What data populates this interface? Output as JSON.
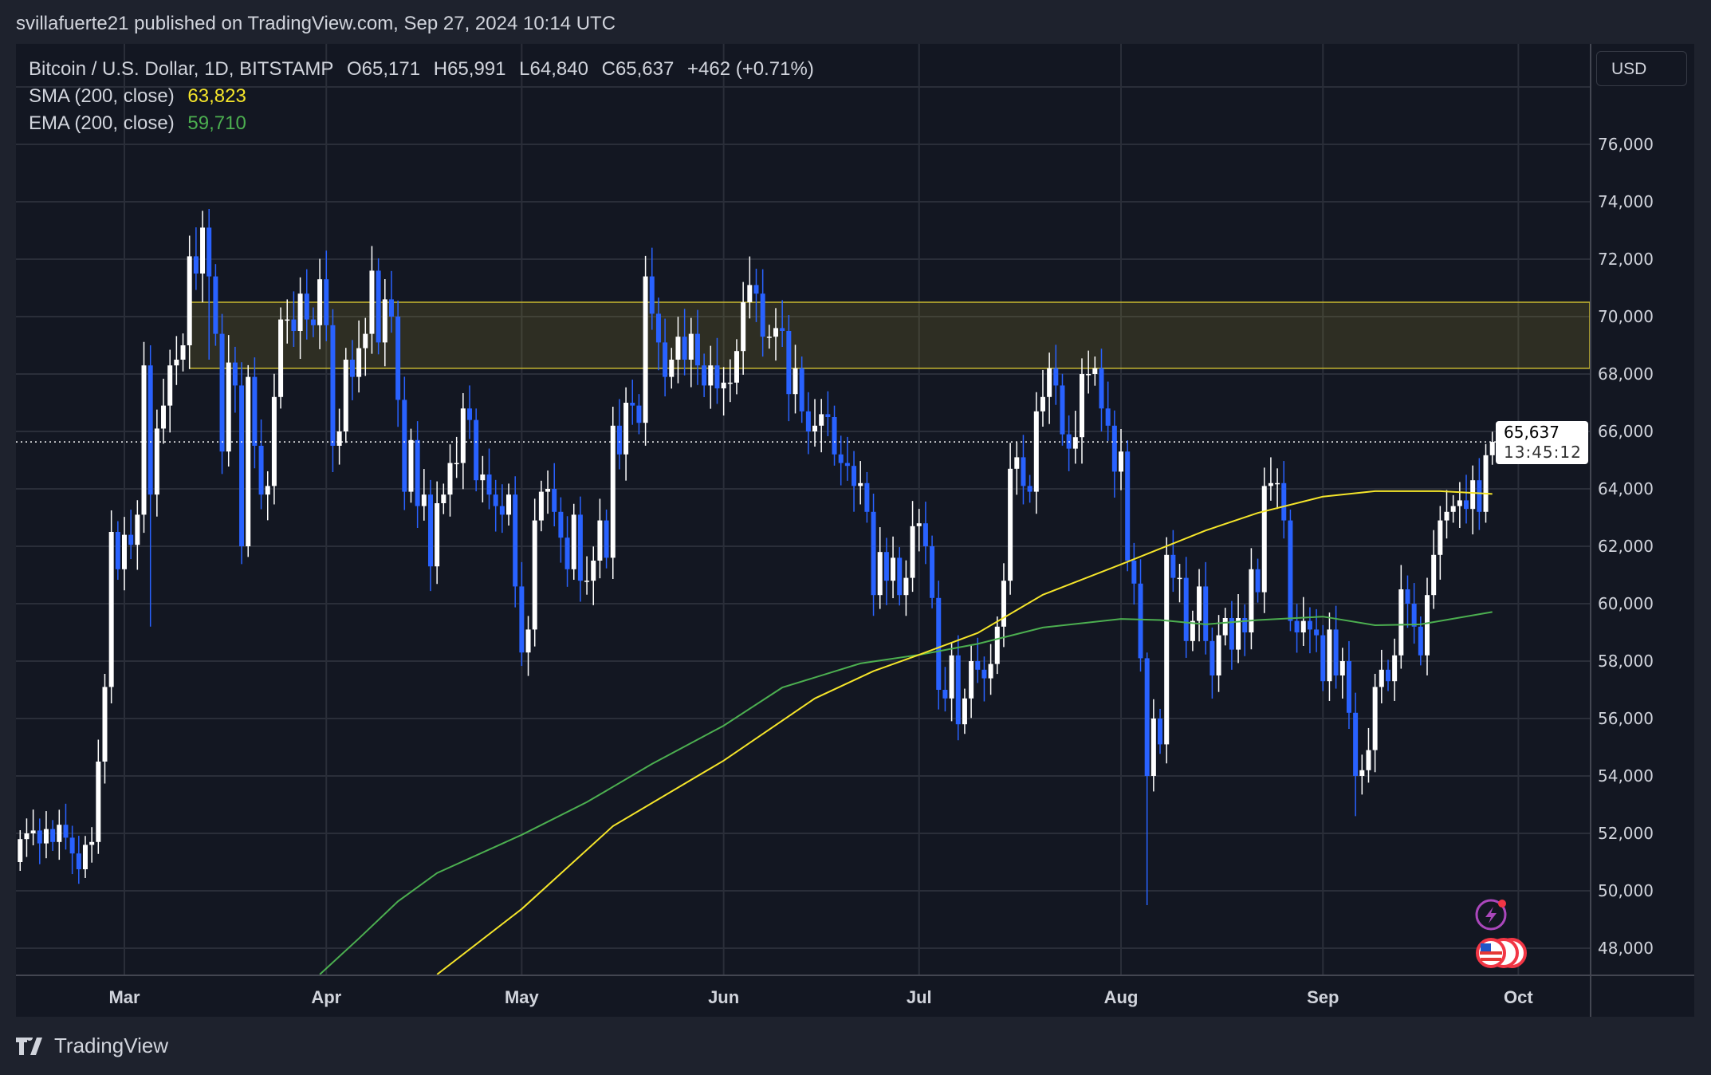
{
  "header": {
    "publisher": "svillafuerte21 published on TradingView.com, Sep 27, 2024 10:14 UTC"
  },
  "legend": {
    "symbol": "Bitcoin / U.S. Dollar, 1D, BITSTAMP",
    "open": "O65,171",
    "high": "H65,991",
    "low": "L64,840",
    "close": "C65,637",
    "change": "+462 (+0.71%)",
    "sma_label": "SMA (200, close)",
    "sma_value": "63,823",
    "ema_label": "EMA (200, close)",
    "ema_value": "59,710"
  },
  "currency_button": "USD",
  "price_label": {
    "price": "65,637",
    "countdown": "13:45:12"
  },
  "footer": {
    "brand": "TradingView"
  },
  "colors": {
    "up": "#ffffff",
    "down": "#2962ff",
    "sma": "#f5e52a",
    "ema": "#4caf50",
    "zone": "#c8b830",
    "bg": "#131722",
    "grid": "#2a2e39"
  },
  "icons": [
    "lightning-event-icon",
    "us-flag-event-icon"
  ],
  "chart_data": {
    "type": "candlestick",
    "title": "Bitcoin / U.S. Dollar, 1D, BITSTAMP",
    "start_date": "2024-02-14",
    "start_open": 51000,
    "closes": [
      51800,
      52000,
      52100,
      51650,
      52150,
      51700,
      52300,
      51850,
      51300,
      50750,
      51600,
      51700,
      54500,
      57100,
      62500,
      61200,
      62400,
      62050,
      63100,
      68300,
      63800,
      66100,
      66900,
      68300,
      68500,
      69000,
      72100,
      71500,
      73100,
      71400,
      69400,
      65300,
      68400,
      67600,
      62000,
      67900,
      65500,
      63800,
      64100,
      67200,
      69900,
      69900,
      69500,
      70800,
      69900,
      69700,
      71300,
      69700,
      65500,
      66000,
      68500,
      67900,
      68900,
      69400,
      71600,
      69100,
      70600,
      70000,
      67100,
      63900,
      65700,
      63400,
      63800,
      61300,
      63500,
      63800,
      64900,
      64900,
      66800,
      66400,
      64300,
      64500,
      63800,
      63400,
      63100,
      63800,
      60600,
      58300,
      59100,
      62900,
      63900,
      64000,
      63200,
      62300,
      61200,
      63100,
      60800,
      60800,
      61500,
      62900,
      61600,
      66200,
      65200,
      67000,
      66900,
      66300,
      71400,
      70100,
      69100,
      67900,
      68500,
      69300,
      68500,
      69400,
      68300,
      67600,
      68300,
      67500,
      67700,
      67700,
      68800,
      70500,
      71100,
      70800,
      69300,
      69300,
      69600,
      69500,
      67300,
      68200,
      66700,
      66000,
      66200,
      66600,
      66500,
      65200,
      64900,
      64800,
      64100,
      64200,
      63200,
      60300,
      61800,
      60800,
      61600,
      60300,
      60900,
      62700,
      62800,
      62000,
      60200,
      57000,
      56700,
      58200,
      55800,
      56700,
      58000,
      57700,
      57400,
      57900,
      59200,
      60800,
      64700,
      65100,
      64100,
      63900,
      66700,
      67200,
      68200,
      67600,
      65900,
      65400,
      65800,
      68000,
      68000,
      68200,
      66800,
      66200,
      64600,
      65300,
      61500,
      60700,
      58100,
      54000,
      56000,
      55100,
      61700,
      60900,
      60900,
      58700,
      59400,
      60600,
      58700,
      57500,
      58900,
      59500,
      58400,
      59500,
      59000,
      61200,
      60400,
      64100,
      64200,
      64200,
      62900,
      59400,
      59000,
      59400,
      59100,
      58900,
      57300,
      59100,
      57500,
      58000,
      56200,
      54000,
      54200,
      54900,
      57100,
      57700,
      57300,
      58200,
      60500,
      60000,
      59200,
      58200,
      60300,
      61700,
      62900,
      63200,
      63400,
      63600,
      63300,
      64300,
      63200,
      65171,
      65637
    ],
    "extremes": {
      "2024-03-05": [
        69000,
        59200
      ],
      "2024-03-14": [
        73750,
        68500
      ],
      "2024-08-05": [
        58300,
        49500
      ],
      "2024-09-06": [
        56900,
        52600
      ],
      "2024-09-27": [
        65991,
        64840
      ]
    },
    "sma": [
      [
        "2024-04-18",
        47087
      ],
      [
        "2024-05-01",
        49367
      ],
      [
        "2024-05-15",
        52254
      ],
      [
        "2024-06-01",
        54534
      ],
      [
        "2024-06-15",
        56700
      ],
      [
        "2024-06-24",
        57650
      ],
      [
        "2024-07-01",
        58220
      ],
      [
        "2024-07-10",
        58980
      ],
      [
        "2024-07-20",
        60310
      ],
      [
        "2024-08-01",
        61370
      ],
      [
        "2024-08-14",
        62550
      ],
      [
        "2024-08-22",
        63160
      ],
      [
        "2024-09-01",
        63730
      ],
      [
        "2024-09-09",
        63920
      ],
      [
        "2024-09-19",
        63920
      ],
      [
        "2024-09-27",
        63823
      ]
    ],
    "ema": [
      [
        "2024-03-31",
        47087
      ],
      [
        "2024-04-06",
        48340
      ],
      [
        "2024-04-12",
        49630
      ],
      [
        "2024-04-18",
        50620
      ],
      [
        "2024-05-01",
        51950
      ],
      [
        "2024-05-11",
        53090
      ],
      [
        "2024-05-21",
        54420
      ],
      [
        "2024-06-01",
        55750
      ],
      [
        "2024-06-10",
        57080
      ],
      [
        "2024-06-22",
        57920
      ],
      [
        "2024-07-01",
        58220
      ],
      [
        "2024-07-10",
        58600
      ],
      [
        "2024-07-20",
        59170
      ],
      [
        "2024-08-01",
        59470
      ],
      [
        "2024-08-07",
        59430
      ],
      [
        "2024-08-14",
        59280
      ],
      [
        "2024-08-22",
        59430
      ],
      [
        "2024-09-01",
        59550
      ],
      [
        "2024-09-09",
        59250
      ],
      [
        "2024-09-16",
        59280
      ],
      [
        "2024-09-27",
        59710
      ]
    ],
    "resistance_zone": {
      "low": 68200,
      "high": 70500,
      "start": "2024-03-11"
    },
    "last_price": 65637,
    "y_ticks": [
      48000,
      50000,
      52000,
      54000,
      56000,
      58000,
      60000,
      62000,
      64000,
      66000,
      68000,
      70000,
      72000,
      74000,
      76000
    ],
    "y_tick_labels": [
      "48,000",
      "50,000",
      "52,000",
      "54,000",
      "56,000",
      "58,000",
      "60,000",
      "62,000",
      "64,000",
      "66,000",
      "68,000",
      "70,000",
      "72,000",
      "74,000",
      "76,000"
    ],
    "ylim": [
      47000,
      79000
    ],
    "x_ticks": [
      [
        "2024-03-01",
        "Mar"
      ],
      [
        "2024-04-01",
        "Apr"
      ],
      [
        "2024-05-01",
        "May"
      ],
      [
        "2024-06-01",
        "Jun"
      ],
      [
        "2024-07-01",
        "Jul"
      ],
      [
        "2024-08-01",
        "Aug"
      ],
      [
        "2024-09-01",
        "Sep"
      ],
      [
        "2024-10-01",
        "Oct"
      ]
    ],
    "grid": true
  }
}
